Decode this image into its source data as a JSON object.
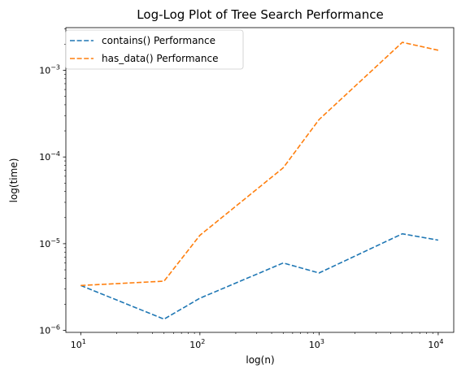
{
  "chart_data": {
    "type": "line",
    "title": "Log-Log Plot of Tree Search Performance",
    "xlabel": "log(n)",
    "ylabel": "log(time)",
    "xscale": "log",
    "yscale": "log",
    "xlim": [
      7.5,
      13500
    ],
    "ylim": [
      9.5e-07,
      0.0031
    ],
    "x": [
      10,
      50,
      100,
      500,
      1000,
      5000,
      10000
    ],
    "x_ticks": [
      {
        "value": 10,
        "base": "10",
        "exp": "1"
      },
      {
        "value": 100,
        "base": "10",
        "exp": "2"
      },
      {
        "value": 1000,
        "base": "10",
        "exp": "3"
      },
      {
        "value": 10000,
        "base": "10",
        "exp": "4"
      }
    ],
    "y_ticks": [
      {
        "value": 1e-06,
        "base": "10",
        "exp": "−6"
      },
      {
        "value": 1e-05,
        "base": "10",
        "exp": "−5"
      },
      {
        "value": 0.0001,
        "base": "10",
        "exp": "−4"
      },
      {
        "value": 0.001,
        "base": "10",
        "exp": "−3"
      }
    ],
    "series": [
      {
        "name": "contains() Performance",
        "color": "#1f77b4",
        "linestyle": "dashed",
        "values": [
          3.3e-06,
          1.35e-06,
          2.35e-06,
          6e-06,
          4.6e-06,
          1.3e-05,
          1.1e-05
        ]
      },
      {
        "name": "has_data() Performance",
        "color": "#ff7f0e",
        "linestyle": "dashed",
        "values": [
          3.3e-06,
          3.7e-06,
          1.25e-05,
          7.5e-05,
          0.00027,
          0.0021,
          0.0017
        ]
      }
    ],
    "legend_position": "upper-left",
    "grid": false
  }
}
